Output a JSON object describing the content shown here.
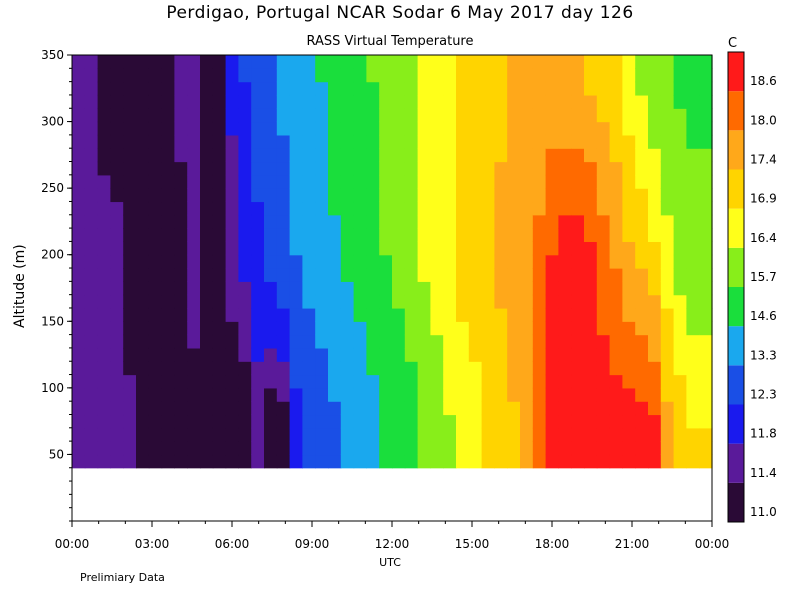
{
  "chart_data": {
    "type": "heatmap",
    "title": "Perdigao, Portugal  NCAR Sodar    6 May 2017  day 126",
    "subtitle": "RASS Virtual Temperature",
    "xlabel": "UTC",
    "ylabel": "Altitude (m)",
    "footnote": "Prelimiary Data",
    "colorbar_unit": "C",
    "x_ticks": [
      "00:00",
      "03:00",
      "06:00",
      "09:00",
      "12:00",
      "15:00",
      "18:00",
      "21:00",
      "00:00"
    ],
    "x_range_hours": [
      0,
      24
    ],
    "y_ticks": [
      50,
      100,
      150,
      200,
      250,
      300,
      350
    ],
    "ylim": [
      0,
      350
    ],
    "data_altitude_range": [
      40,
      350
    ],
    "colorbar_levels": [
      11.0,
      11.4,
      11.8,
      12.3,
      13.3,
      14.6,
      15.7,
      16.4,
      16.9,
      17.4,
      18.0,
      18.6
    ],
    "colorbar_colors": [
      "#2a0a36",
      "#5a1a9a",
      "#1a1aee",
      "#1a4fe6",
      "#1aa8ee",
      "#1ade3c",
      "#88ee1a",
      "#ffff1a",
      "#ffd400",
      "#ffa81a",
      "#ff6a00",
      "#ff1a1a"
    ],
    "series": [
      {
        "altitude": 60,
        "values": [
          null,
          11.6,
          11.6,
          11.6,
          11.6,
          11.0,
          11.2,
          11.0,
          11.0,
          11.2,
          11.2,
          11.0,
          11.0,
          11.0,
          11.6,
          11.0,
          11.0,
          11.9,
          12.3,
          12.6,
          13.0,
          13.4,
          13.8,
          14.2,
          14.6,
          15.0,
          15.3,
          15.8,
          16.0,
          16.3,
          16.5,
          16.7,
          16.9,
          17.1,
          17.3,
          17.6,
          18.1,
          18.8,
          18.9,
          19.0,
          19.0,
          19.0,
          19.0,
          19.0,
          19.0,
          18.8,
          17.6,
          17.3,
          17.0,
          17.0
        ]
      },
      {
        "altitude": 200,
        "values": [
          11.6,
          11.6,
          11.6,
          11.6,
          11.0,
          11.2,
          11.2,
          11.0,
          11.2,
          11.6,
          11.2,
          11.0,
          11.6,
          11.9,
          12.1,
          12.5,
          12.9,
          13.3,
          13.7,
          14.1,
          14.5,
          14.8,
          15.1,
          15.4,
          15.7,
          16.0,
          16.2,
          16.5,
          16.7,
          16.9,
          17.1,
          17.2,
          17.4,
          17.5,
          17.7,
          17.9,
          18.1,
          18.6,
          18.9,
          19.0,
          18.7,
          18.3,
          17.9,
          17.5,
          17.3,
          17.0,
          16.6,
          16.2,
          16.0,
          16.0
        ]
      },
      {
        "altitude": 330,
        "values": [
          11.6,
          11.6,
          11.2,
          11.0,
          11.0,
          11.2,
          11.2,
          11.0,
          11.6,
          11.6,
          11.2,
          11.0,
          11.9,
          12.3,
          12.7,
          13.1,
          13.5,
          13.9,
          14.3,
          14.6,
          14.9,
          15.2,
          15.4,
          15.7,
          15.9,
          16.1,
          16.3,
          16.5,
          16.7,
          16.8,
          17.0,
          17.1,
          17.2,
          17.3,
          17.4,
          17.5,
          17.6,
          17.6,
          17.5,
          17.4,
          17.3,
          17.1,
          16.9,
          16.6,
          16.3,
          16.0,
          15.8,
          15.6,
          15.5,
          15.5
        ]
      }
    ]
  }
}
